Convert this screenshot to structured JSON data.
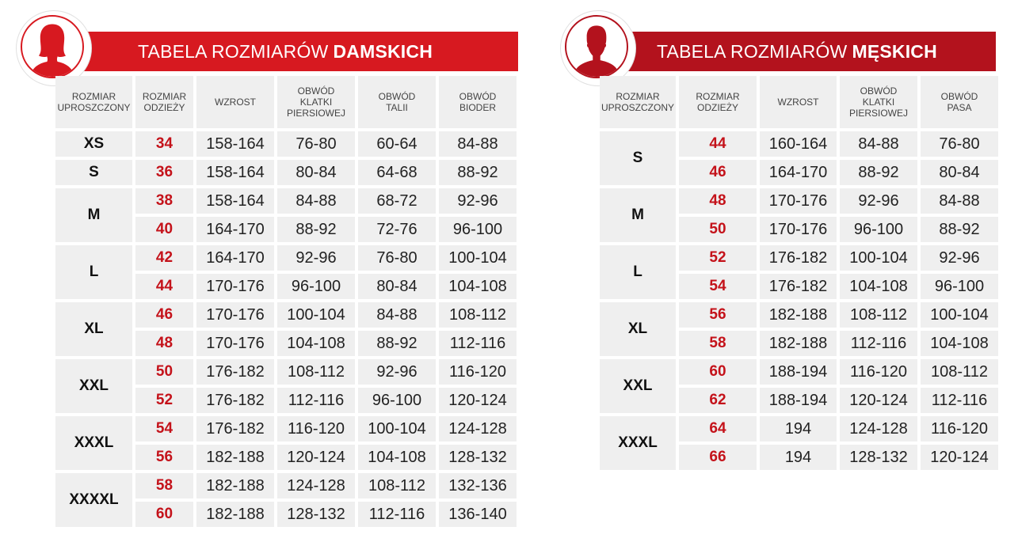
{
  "colors": {
    "women_accent": "#d71920",
    "men_accent": "#b3121d",
    "size_text": "#c4121a",
    "cell_bg": "#efefef"
  },
  "women": {
    "title_prefix": "TABELA ROZMIARÓW",
    "title_bold": "DAMSKICH",
    "icon": "woman-silhouette-icon",
    "headers": [
      "ROZMIAR\nUPROSZCZONY",
      "ROZMIAR\nODZIEŻY",
      "WZROST",
      "OBWÓD\nKLATKI\nPIERSIOWEJ",
      "OBWÓD\nTALII",
      "OBWÓD\nBIODER"
    ],
    "groups": [
      {
        "label": "XS",
        "rows": [
          [
            "34",
            "158-164",
            "76-80",
            "60-64",
            "84-88"
          ]
        ]
      },
      {
        "label": "S",
        "rows": [
          [
            "36",
            "158-164",
            "80-84",
            "64-68",
            "88-92"
          ]
        ]
      },
      {
        "label": "M",
        "rows": [
          [
            "38",
            "158-164",
            "84-88",
            "68-72",
            "92-96"
          ],
          [
            "40",
            "164-170",
            "88-92",
            "72-76",
            "96-100"
          ]
        ]
      },
      {
        "label": "L",
        "rows": [
          [
            "42",
            "164-170",
            "92-96",
            "76-80",
            "100-104"
          ],
          [
            "44",
            "170-176",
            "96-100",
            "80-84",
            "104-108"
          ]
        ]
      },
      {
        "label": "XL",
        "rows": [
          [
            "46",
            "170-176",
            "100-104",
            "84-88",
            "108-112"
          ],
          [
            "48",
            "170-176",
            "104-108",
            "88-92",
            "112-116"
          ]
        ]
      },
      {
        "label": "XXL",
        "rows": [
          [
            "50",
            "176-182",
            "108-112",
            "92-96",
            "116-120"
          ],
          [
            "52",
            "176-182",
            "112-116",
            "96-100",
            "120-124"
          ]
        ]
      },
      {
        "label": "XXXL",
        "rows": [
          [
            "54",
            "176-182",
            "116-120",
            "100-104",
            "124-128"
          ],
          [
            "56",
            "182-188",
            "120-124",
            "104-108",
            "128-132"
          ]
        ]
      },
      {
        "label": "XXXXL",
        "rows": [
          [
            "58",
            "182-188",
            "124-128",
            "108-112",
            "132-136"
          ],
          [
            "60",
            "182-188",
            "128-132",
            "112-116",
            "136-140"
          ]
        ]
      }
    ]
  },
  "men": {
    "title_prefix": "TABELA ROZMIARÓW",
    "title_bold": "MĘSKICH",
    "icon": "man-silhouette-icon",
    "headers": [
      "ROZMIAR\nUPROSZCZONY",
      "ROZMIAR\nODZIEŻY",
      "WZROST",
      "OBWÓD\nKLATKI\nPIERSIOWEJ",
      "OBWÓD\nPASA"
    ],
    "groups": [
      {
        "label": "S",
        "rows": [
          [
            "44",
            "160-164",
            "84-88",
            "76-80"
          ],
          [
            "46",
            "164-170",
            "88-92",
            "80-84"
          ]
        ]
      },
      {
        "label": "M",
        "rows": [
          [
            "48",
            "170-176",
            "92-96",
            "84-88"
          ],
          [
            "50",
            "170-176",
            "96-100",
            "88-92"
          ]
        ]
      },
      {
        "label": "L",
        "rows": [
          [
            "52",
            "176-182",
            "100-104",
            "92-96"
          ],
          [
            "54",
            "176-182",
            "104-108",
            "96-100"
          ]
        ]
      },
      {
        "label": "XL",
        "rows": [
          [
            "56",
            "182-188",
            "108-112",
            "100-104"
          ],
          [
            "58",
            "182-188",
            "112-116",
            "104-108"
          ]
        ]
      },
      {
        "label": "XXL",
        "rows": [
          [
            "60",
            "188-194",
            "116-120",
            "108-112"
          ],
          [
            "62",
            "188-194",
            "120-124",
            "112-116"
          ]
        ]
      },
      {
        "label": "XXXL",
        "rows": [
          [
            "64",
            "194",
            "124-128",
            "116-120"
          ],
          [
            "66",
            "194",
            "128-132",
            "120-124"
          ]
        ]
      }
    ]
  }
}
